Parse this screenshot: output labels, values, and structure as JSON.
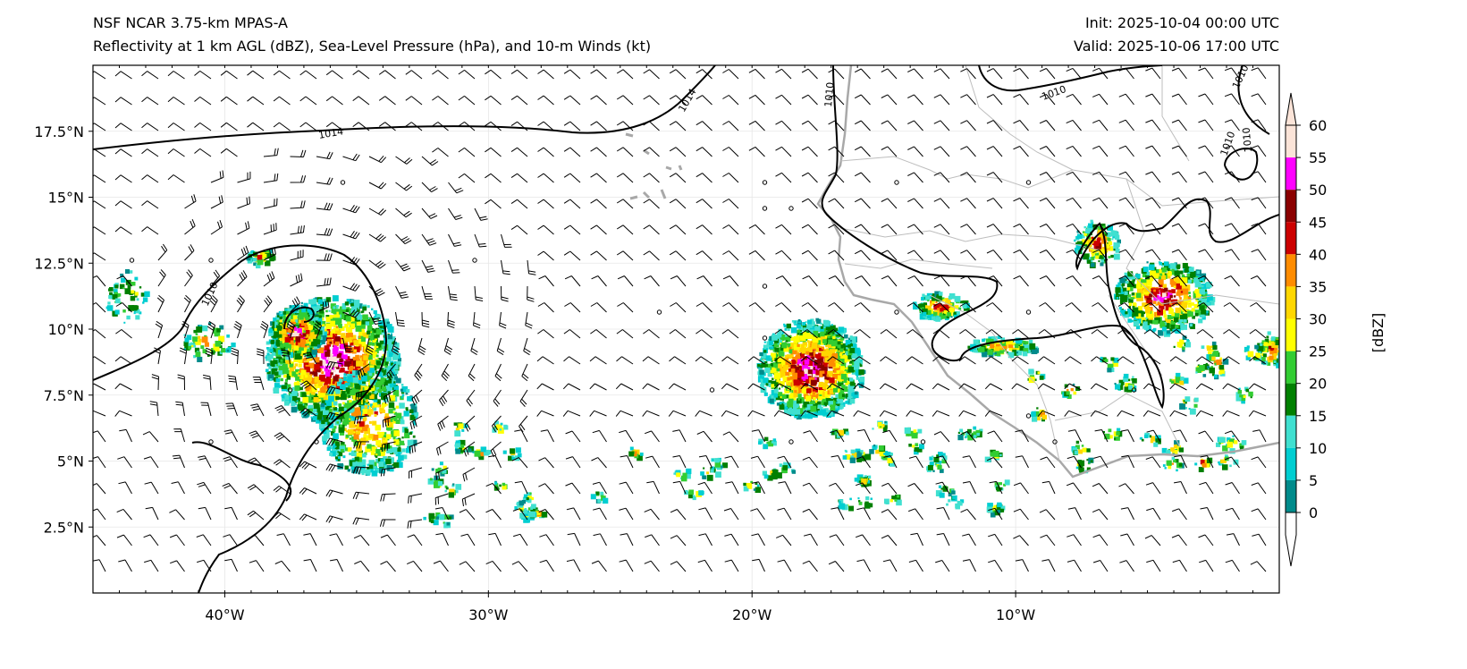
{
  "title": {
    "model": "NSF NCAR 3.75-km MPAS-A",
    "fields": "Reflectivity at 1 km AGL (dBZ), Sea-Level Pressure (hPa), and 10-m Winds (kt)",
    "init": "Init: 2025-10-04 00:00 UTC",
    "valid": "Valid: 2025-10-06 17:00 UTC"
  },
  "map": {
    "lon_range": [
      -45,
      0
    ],
    "lat_range": [
      0,
      20
    ],
    "lat_ticks": [
      {
        "v": 17.5,
        "label": "17.5°N"
      },
      {
        "v": 15,
        "label": "15°N"
      },
      {
        "v": 12.5,
        "label": "12.5°N"
      },
      {
        "v": 10,
        "label": "10°N"
      },
      {
        "v": 7.5,
        "label": "7.5°N"
      },
      {
        "v": 5,
        "label": "5°N"
      },
      {
        "v": 2.5,
        "label": "2.5°N"
      }
    ],
    "lon_ticks": [
      {
        "v": -40,
        "label": "40°W"
      },
      {
        "v": -30,
        "label": "30°W"
      },
      {
        "v": -20,
        "label": "20°W"
      },
      {
        "v": -10,
        "label": "10°W"
      }
    ],
    "isobar_labels": [
      "1014",
      "1014",
      "1010",
      "1010",
      "1010",
      "1010",
      "1010",
      "1010"
    ]
  },
  "colorbar": {
    "label": "[dBZ]",
    "ticks": [
      "0",
      "5",
      "10",
      "15",
      "20",
      "25",
      "30",
      "35",
      "40",
      "45",
      "50",
      "55",
      "60"
    ],
    "colors": [
      "#008b8b",
      "#00ced1",
      "#40e0d0",
      "#008000",
      "#32cd32",
      "#ffff00",
      "#ffd700",
      "#ff8c00",
      "#cc0000",
      "#8b0000",
      "#ff00ff",
      "#fbe4d8"
    ]
  }
}
